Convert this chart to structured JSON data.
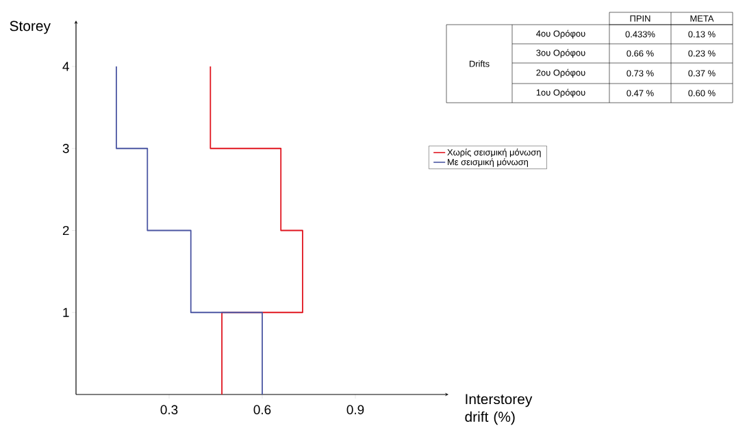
{
  "chart_data": {
    "type": "line",
    "xlabel": "Interstorey drift (%)",
    "ylabel": "Storey",
    "xlim": [
      0,
      1.2
    ],
    "ylim": [
      0,
      4.56
    ],
    "xticks": [
      0.3,
      0.6,
      0.9
    ],
    "yticks": [
      1,
      2,
      3,
      4
    ],
    "grid": false,
    "legend": "right",
    "marker": "none",
    "line_style": "solid",
    "series": [
      {
        "name": "Χωρίς σεισμική μόνωση",
        "color": "#e0141e",
        "x": [
          0.47,
          0.47,
          0.73,
          0.73,
          0.66,
          0.66,
          0.433,
          0.433
        ],
        "values": [
          0,
          1,
          1,
          2,
          2,
          3,
          3,
          4
        ]
      },
      {
        "name": "Με σεισμική μόνωση",
        "color": "#4a55a2",
        "x": [
          0.6,
          0.6,
          0.37,
          0.37,
          0.23,
          0.23,
          0.13,
          0.13
        ],
        "values": [
          0,
          1,
          1,
          2,
          2,
          3,
          3,
          4
        ]
      }
    ],
    "annotations": [
      "ΠΡΙΝ",
      "ΜΕΤΑ",
      "Drifts",
      "4ου Ορόφου",
      "0.433%",
      "0.13 %",
      "3ου Ορόφου",
      "0.66 %",
      "0.23 %",
      "2ου Ορόφου",
      "0.73 %",
      "0.37 %",
      "1ου Ορόφου",
      "0.47 %",
      "0.60 %"
    ]
  }
}
